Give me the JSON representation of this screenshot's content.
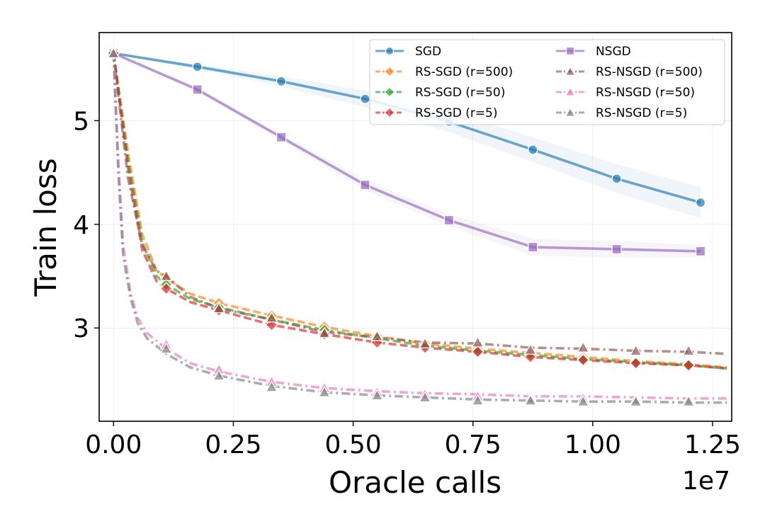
{
  "chart_data": {
    "type": "line",
    "xlabel": "Oracle calls",
    "ylabel": "Train loss",
    "x_offset_label": "1e7",
    "x_scale": 10000000,
    "xlim": [
      -0.3,
      12.9
    ],
    "ylim": [
      2.1,
      5.85
    ],
    "x_ticks": [
      0,
      2.5,
      5,
      7.5,
      10,
      12.5
    ],
    "x_tick_labels": [
      "0.00",
      "0.25",
      "0.50",
      "0.75",
      "1.00",
      "1.25"
    ],
    "y_ticks": [
      3,
      4,
      5
    ],
    "y_tick_labels": [
      "3",
      "4",
      "5"
    ],
    "grid": true,
    "legend_position": "top-right",
    "series": [
      {
        "name": "SGD",
        "color": "#1f77b4",
        "marker": "circle",
        "dash": "solid",
        "x": [
          0,
          1.75,
          3.5,
          5.25,
          7.0,
          8.75,
          10.5,
          12.25
        ],
        "y": [
          5.65,
          5.52,
          5.38,
          5.21,
          4.99,
          4.72,
          4.44,
          4.21
        ],
        "band": [
          0.0,
          0.02,
          0.05,
          0.08,
          0.1,
          0.12,
          0.14,
          0.15
        ]
      },
      {
        "name": "NSGD",
        "color": "#9467bd",
        "marker": "square",
        "dash": "solid",
        "x": [
          0,
          1.75,
          3.5,
          5.25,
          7.0,
          8.75,
          10.5,
          12.25
        ],
        "y": [
          5.65,
          5.3,
          4.84,
          4.38,
          4.04,
          3.78,
          3.76,
          3.74
        ],
        "band": [
          0.0,
          0.02,
          0.03,
          0.05,
          0.06,
          0.08,
          0.08,
          0.06
        ]
      },
      {
        "name": "RS-SGD (r=500)",
        "color": "#ff7f0e",
        "marker": "diamond",
        "dash": "dashed",
        "x": [
          0,
          0.3,
          0.6,
          0.9,
          1.1,
          1.6,
          2.2,
          3.3,
          4.4,
          5.5,
          6.5,
          7.6,
          8.7,
          9.8,
          10.9,
          12.0,
          12.8
        ],
        "y": [
          5.65,
          4.7,
          3.9,
          3.55,
          3.48,
          3.33,
          3.24,
          3.12,
          3.01,
          2.92,
          2.85,
          2.8,
          2.76,
          2.72,
          2.68,
          2.65,
          2.62
        ],
        "markers": [
          [
            0,
            5.65
          ],
          [
            1.1,
            3.48
          ],
          [
            2.2,
            3.24
          ],
          [
            3.3,
            3.12
          ],
          [
            4.4,
            3.01
          ],
          [
            5.5,
            2.92
          ],
          [
            6.5,
            2.85
          ],
          [
            7.6,
            2.8
          ],
          [
            8.7,
            2.76
          ],
          [
            9.8,
            2.72
          ],
          [
            10.9,
            2.68
          ],
          [
            12.0,
            2.65
          ]
        ]
      },
      {
        "name": "RS-SGD (r=50)",
        "color": "#2ca02c",
        "marker": "diamond",
        "dash": "dashed",
        "x": [
          0,
          0.3,
          0.6,
          0.9,
          1.1,
          1.6,
          2.2,
          3.3,
          4.4,
          5.5,
          6.5,
          7.6,
          8.7,
          9.8,
          10.9,
          12.0,
          12.8
        ],
        "y": [
          5.65,
          4.62,
          3.82,
          3.5,
          3.42,
          3.28,
          3.2,
          3.08,
          2.98,
          2.9,
          2.83,
          2.78,
          2.74,
          2.7,
          2.67,
          2.64,
          2.61
        ],
        "markers": [
          [
            0,
            5.65
          ],
          [
            1.1,
            3.42
          ],
          [
            2.2,
            3.2
          ],
          [
            3.3,
            3.08
          ],
          [
            4.4,
            2.98
          ],
          [
            5.5,
            2.9
          ],
          [
            6.5,
            2.83
          ],
          [
            7.6,
            2.78
          ],
          [
            8.7,
            2.74
          ],
          [
            9.8,
            2.7
          ],
          [
            10.9,
            2.67
          ],
          [
            12.0,
            2.64
          ]
        ]
      },
      {
        "name": "RS-SGD (r=5)",
        "color": "#d62728",
        "marker": "diamond",
        "dash": "dashed",
        "x": [
          0,
          0.3,
          0.6,
          0.9,
          1.1,
          1.6,
          2.2,
          3.3,
          4.4,
          5.5,
          6.5,
          7.6,
          8.7,
          9.8,
          10.9,
          12.0,
          12.8
        ],
        "y": [
          5.65,
          4.55,
          3.75,
          3.45,
          3.38,
          3.25,
          3.17,
          3.03,
          2.94,
          2.86,
          2.81,
          2.77,
          2.72,
          2.69,
          2.66,
          2.64,
          2.61
        ],
        "markers": [
          [
            0,
            5.65
          ],
          [
            1.1,
            3.38
          ],
          [
            2.2,
            3.17
          ],
          [
            3.3,
            3.03
          ],
          [
            4.4,
            2.94
          ],
          [
            5.5,
            2.86
          ],
          [
            6.5,
            2.81
          ],
          [
            7.6,
            2.77
          ],
          [
            8.7,
            2.72
          ],
          [
            9.8,
            2.69
          ],
          [
            10.9,
            2.66
          ],
          [
            12.0,
            2.64
          ]
        ]
      },
      {
        "name": "RS-NSGD (r=500)",
        "color": "#8c564b",
        "marker": "triangle",
        "dash": "dashdot",
        "x": [
          0,
          0.3,
          0.6,
          0.9,
          1.1,
          1.6,
          2.2,
          3.3,
          4.4,
          5.5,
          6.5,
          7.6,
          8.7,
          9.8,
          10.9,
          12.0,
          12.8
        ],
        "y": [
          5.65,
          4.45,
          3.8,
          3.55,
          3.5,
          3.3,
          3.19,
          3.08,
          2.96,
          2.91,
          2.86,
          2.85,
          2.81,
          2.8,
          2.78,
          2.77,
          2.75
        ],
        "markers": [
          [
            0,
            5.65
          ],
          [
            1.1,
            3.5
          ],
          [
            2.2,
            3.19
          ],
          [
            3.3,
            3.1
          ],
          [
            4.4,
            2.95
          ],
          [
            5.5,
            2.92
          ],
          [
            6.5,
            2.85
          ],
          [
            7.6,
            2.86
          ],
          [
            8.7,
            2.79
          ],
          [
            9.8,
            2.81
          ],
          [
            10.9,
            2.78
          ],
          [
            12.0,
            2.78
          ]
        ]
      },
      {
        "name": "RS-NSGD (r=50)",
        "color": "#e377c2",
        "marker": "triangle",
        "dash": "dashdot",
        "x": [
          0,
          0.1,
          0.2,
          0.35,
          0.5,
          0.7,
          1.1,
          1.6,
          2.2,
          3.3,
          4.4,
          5.5,
          6.5,
          7.6,
          8.7,
          9.8,
          10.9,
          12.0,
          12.8
        ],
        "y": [
          5.65,
          4.6,
          3.8,
          3.35,
          3.1,
          2.95,
          2.8,
          2.66,
          2.58,
          2.48,
          2.42,
          2.39,
          2.37,
          2.36,
          2.34,
          2.34,
          2.33,
          2.32,
          2.32
        ],
        "markers": [
          [
            0,
            5.65
          ],
          [
            1.1,
            2.84
          ],
          [
            2.2,
            2.6
          ],
          [
            3.3,
            2.48
          ],
          [
            4.4,
            2.42
          ],
          [
            5.5,
            2.38
          ],
          [
            6.5,
            2.36
          ],
          [
            7.6,
            2.34
          ],
          [
            8.7,
            2.32
          ],
          [
            9.8,
            2.32
          ],
          [
            10.9,
            2.31
          ],
          [
            12.0,
            2.31
          ]
        ]
      },
      {
        "name": "RS-NSGD (r=5)",
        "color": "#7f7f7f",
        "marker": "triangle",
        "dash": "dashdot",
        "x": [
          0,
          0.1,
          0.2,
          0.35,
          0.5,
          0.7,
          1.1,
          1.6,
          2.2,
          3.3,
          4.4,
          5.5,
          6.5,
          7.6,
          8.7,
          9.8,
          10.9,
          12.0,
          12.8
        ],
        "y": [
          5.65,
          4.5,
          3.7,
          3.3,
          3.05,
          2.9,
          2.75,
          2.62,
          2.54,
          2.44,
          2.38,
          2.35,
          2.33,
          2.31,
          2.3,
          2.29,
          2.29,
          2.28,
          2.28
        ],
        "markers": [
          [
            0,
            5.65
          ],
          [
            1.1,
            2.8
          ],
          [
            2.2,
            2.54
          ],
          [
            3.3,
            2.43
          ],
          [
            4.4,
            2.38
          ],
          [
            5.5,
            2.35
          ],
          [
            6.5,
            2.33
          ],
          [
            7.6,
            2.3
          ],
          [
            8.7,
            2.3
          ],
          [
            9.8,
            2.29
          ],
          [
            10.9,
            2.29
          ],
          [
            12.0,
            2.29
          ]
        ]
      }
    ]
  }
}
